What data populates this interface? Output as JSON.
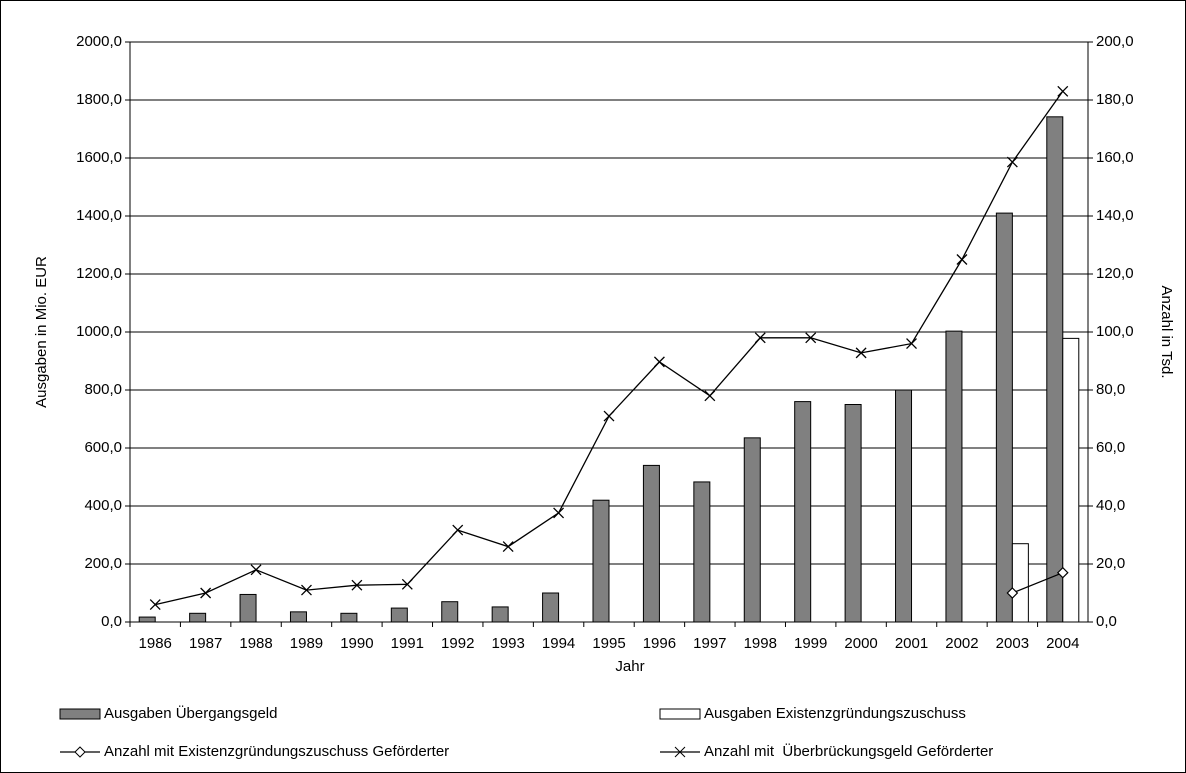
{
  "chart_data": {
    "type": "bar-line",
    "xlabel": "Jahr",
    "ylabel": "Ausgaben in Mio. EUR",
    "y2label": "Anzahl in Tsd.",
    "categories": [
      "1986",
      "1987",
      "1988",
      "1989",
      "1990",
      "1991",
      "1992",
      "1993",
      "1994",
      "1995",
      "1996",
      "1997",
      "1998",
      "1999",
      "2000",
      "2001",
      "2002",
      "2003",
      "2004"
    ],
    "series": [
      {
        "name": "Ausgaben Übergangsgeld",
        "kind": "bar",
        "color": "#808080",
        "values": [
          17,
          30,
          95,
          35,
          30,
          48,
          70,
          52,
          100,
          420,
          540,
          483,
          635,
          760,
          750,
          800,
          1003,
          1410,
          1742
        ]
      },
      {
        "name": "Ausgaben Existenzgründungszuschuss",
        "kind": "bar",
        "color": "#ffffff",
        "values": [
          null,
          null,
          null,
          null,
          null,
          null,
          null,
          null,
          null,
          null,
          null,
          null,
          null,
          null,
          null,
          null,
          null,
          270,
          978
        ]
      },
      {
        "name": "Anzahl mit Existenzgründungszuschuss Geförderter",
        "kind": "line",
        "marker": "diamond",
        "axis": "y2",
        "color": "#000000",
        "values": [
          null,
          null,
          null,
          null,
          null,
          null,
          null,
          null,
          null,
          null,
          null,
          null,
          null,
          null,
          null,
          null,
          null,
          10,
          17
        ]
      },
      {
        "name": "Anzahl mit  Überbrückungsgeld Geförderter",
        "kind": "line",
        "marker": "x",
        "axis": "y2",
        "color": "#000000",
        "values": [
          6,
          10,
          18,
          11,
          12.7,
          13,
          31.7,
          26,
          37.6,
          71,
          89.7,
          78,
          98,
          98,
          92.8,
          96,
          125,
          158.6,
          183
        ]
      }
    ],
    "ylim": [
      0,
      2000
    ],
    "yticks": [
      {
        "value": 0,
        "label": "0,0"
      },
      {
        "value": 200,
        "label": "200,0"
      },
      {
        "value": 400,
        "label": "400,0"
      },
      {
        "value": 600,
        "label": "600,0"
      },
      {
        "value": 800,
        "label": "800,0"
      },
      {
        "value": 1000,
        "label": "1000,0"
      },
      {
        "value": 1200,
        "label": "1200,0"
      },
      {
        "value": 1400,
        "label": "1400,0"
      },
      {
        "value": 1600,
        "label": "1600,0"
      },
      {
        "value": 1800,
        "label": "1800,0"
      },
      {
        "value": 2000,
        "label": "2000,0"
      }
    ],
    "y2lim": [
      0,
      200
    ],
    "y2ticks": [
      {
        "value": 0,
        "label": "0,0"
      },
      {
        "value": 20,
        "label": "20,0"
      },
      {
        "value": 40,
        "label": "40,0"
      },
      {
        "value": 60,
        "label": "60,0"
      },
      {
        "value": 80,
        "label": "80,0"
      },
      {
        "value": 100,
        "label": "100,0"
      },
      {
        "value": 120,
        "label": "120,0"
      },
      {
        "value": 140,
        "label": "140,0"
      },
      {
        "value": 160,
        "label": "160,0"
      },
      {
        "value": 180,
        "label": "180,0"
      },
      {
        "value": 200,
        "label": "200,0"
      }
    ],
    "grid": true
  }
}
